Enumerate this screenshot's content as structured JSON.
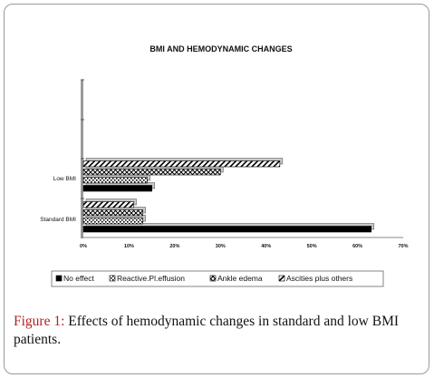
{
  "figure": {
    "label": "Figure 1:",
    "text": " Effects of hemodynamic changes in standard and low BMI patients."
  },
  "chart_data": {
    "type": "bar",
    "orientation": "horizontal",
    "title": "BMI AND HEMODYNAMIC CHANGES",
    "categories": [
      "Standard BMI",
      "Low BMI"
    ],
    "series": [
      {
        "name": "No effect",
        "pattern": "solid",
        "values": [
          63,
          15
        ]
      },
      {
        "name": "Reactive.Pl.effusion",
        "pattern": "dotted",
        "values": [
          13,
          14
        ]
      },
      {
        "name": "Ankle edema",
        "pattern": "crosshatch",
        "values": [
          13,
          30
        ]
      },
      {
        "name": "Ascities plus others",
        "pattern": "diagonal",
        "values": [
          11,
          43
        ]
      }
    ],
    "x_ticks": [
      "0%",
      "10%",
      "20%",
      "30%",
      "40%",
      "50%",
      "60%",
      "70%"
    ],
    "xlim": [
      0,
      70
    ],
    "legend_position": "bottom",
    "grid": false,
    "colors": {
      "bar_fill": "#000000",
      "pattern_bg": "#ffffff",
      "axis": "#808080"
    }
  }
}
